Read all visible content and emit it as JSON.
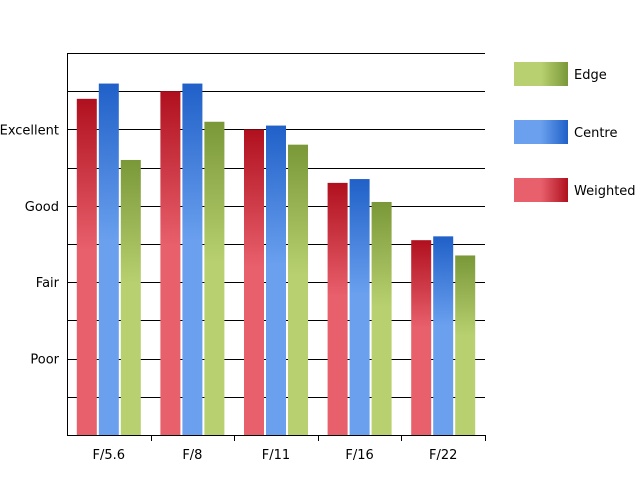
{
  "chart_data": {
    "type": "bar",
    "categories": [
      "F/5.6",
      "F/8",
      "F/11",
      "F/16",
      "F/22"
    ],
    "series": [
      {
        "name": "Weighted",
        "values": [
          8.8,
          9.0,
          8.0,
          6.6,
          5.1
        ],
        "colors": [
          "#e8606c",
          "#b0101e"
        ]
      },
      {
        "name": "Centre",
        "values": [
          9.2,
          9.2,
          8.1,
          6.7,
          5.2
        ],
        "colors": [
          "#6aa0ee",
          "#2060c8"
        ]
      },
      {
        "name": "Edge",
        "values": [
          7.2,
          8.2,
          7.6,
          6.1,
          4.7
        ],
        "colors": [
          "#b8d070",
          "#7a9838"
        ]
      }
    ],
    "legend_order": [
      "Edge",
      "Centre",
      "Weighted"
    ],
    "y_ticks": [
      {
        "label": "Poor",
        "value": 2
      },
      {
        "label": "Fair",
        "value": 4
      },
      {
        "label": "Good",
        "value": 6
      },
      {
        "label": "Excellent",
        "value": 8
      }
    ],
    "ylim": [
      0,
      10
    ],
    "gridlines": [
      1,
      2,
      3,
      4,
      5,
      6,
      7,
      8,
      9,
      10
    ],
    "grid": true,
    "legend_position": "right",
    "title": "",
    "xlabel": "",
    "ylabel": ""
  }
}
